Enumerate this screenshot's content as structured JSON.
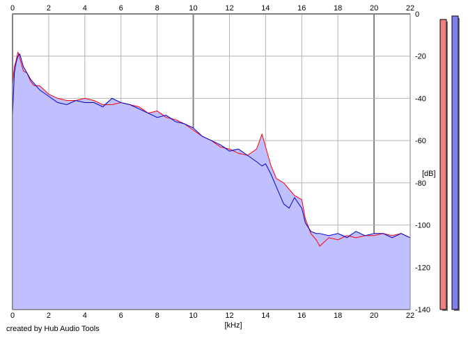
{
  "credit": "created by Hub Audio Tools",
  "chart_data": {
    "type": "line",
    "xlabel": "[kHz]",
    "ylabel": "[dB]",
    "xlim": [
      0,
      22
    ],
    "ylim": [
      -140,
      0
    ],
    "x_ticks": [
      0,
      2,
      4,
      6,
      8,
      10,
      12,
      14,
      16,
      18,
      20,
      22
    ],
    "y_ticks": [
      0,
      -20,
      -40,
      -60,
      -80,
      -100,
      -120,
      -140
    ],
    "grid": true,
    "fill_color": "#c0c0ff",
    "series": [
      {
        "color": "#ff0000",
        "x": [
          0.0,
          0.1,
          0.2,
          0.3,
          0.4,
          0.5,
          0.6,
          0.8,
          1.0,
          1.2,
          1.5,
          2.0,
          2.5,
          3.0,
          3.5,
          4.0,
          4.5,
          5.0,
          5.5,
          6.0,
          6.5,
          7.0,
          7.5,
          8.0,
          8.5,
          9.0,
          9.5,
          10.0,
          10.5,
          11.0,
          11.5,
          12.0,
          12.5,
          13.0,
          13.5,
          13.8,
          14.0,
          14.3,
          14.6,
          15.0,
          15.3,
          15.6,
          16.0,
          16.2,
          16.5,
          16.8,
          17.0,
          17.5,
          18.0,
          18.5,
          19.0,
          19.5,
          20.0,
          20.5,
          21.0,
          21.5,
          22.0
        ],
        "values": [
          -33,
          -25,
          -22,
          -18,
          -21,
          -24,
          -27,
          -28,
          -32,
          -34,
          -34,
          -38,
          -40,
          -41,
          -41,
          -40,
          -41,
          -43,
          -43,
          -42,
          -43,
          -44,
          -47,
          -46,
          -49,
          -50,
          -52,
          -55,
          -58,
          -60,
          -63,
          -64,
          -66,
          -67,
          -64,
          -57,
          -63,
          -72,
          -78,
          -80,
          -83,
          -86,
          -88,
          -97,
          -104,
          -107,
          -110,
          -106,
          -107,
          -105,
          -106,
          -105,
          -105,
          -104,
          -105,
          -104,
          -106
        ]
      },
      {
        "color": "#0000cc",
        "x": [
          0.0,
          0.1,
          0.2,
          0.3,
          0.4,
          0.5,
          0.6,
          0.8,
          1.0,
          1.2,
          1.5,
          2.0,
          2.5,
          3.0,
          3.5,
          4.0,
          4.5,
          5.0,
          5.5,
          6.0,
          6.5,
          7.0,
          7.5,
          8.0,
          8.5,
          9.0,
          9.5,
          10.0,
          10.5,
          11.0,
          11.5,
          12.0,
          12.5,
          13.0,
          13.5,
          13.8,
          14.0,
          14.3,
          14.6,
          15.0,
          15.3,
          15.6,
          16.0,
          16.2,
          16.5,
          16.8,
          17.0,
          17.5,
          18.0,
          18.5,
          19.0,
          19.5,
          20.0,
          20.5,
          21.0,
          21.5,
          22.0
        ],
        "values": [
          -48,
          -28,
          -23,
          -20,
          -19,
          -22,
          -25,
          -28,
          -31,
          -33,
          -36,
          -39,
          -42,
          -43,
          -41,
          -42,
          -42,
          -44,
          -40,
          -42,
          -43,
          -45,
          -47,
          -49,
          -48,
          -51,
          -52,
          -54,
          -58,
          -60,
          -62,
          -65,
          -64,
          -67,
          -70,
          -72,
          -71,
          -76,
          -82,
          -90,
          -92,
          -87,
          -92,
          -99,
          -103,
          -104,
          -104,
          -105,
          -104,
          -106,
          -103,
          -105,
          -104,
          -104,
          -106,
          -104,
          -106
        ]
      }
    ]
  }
}
